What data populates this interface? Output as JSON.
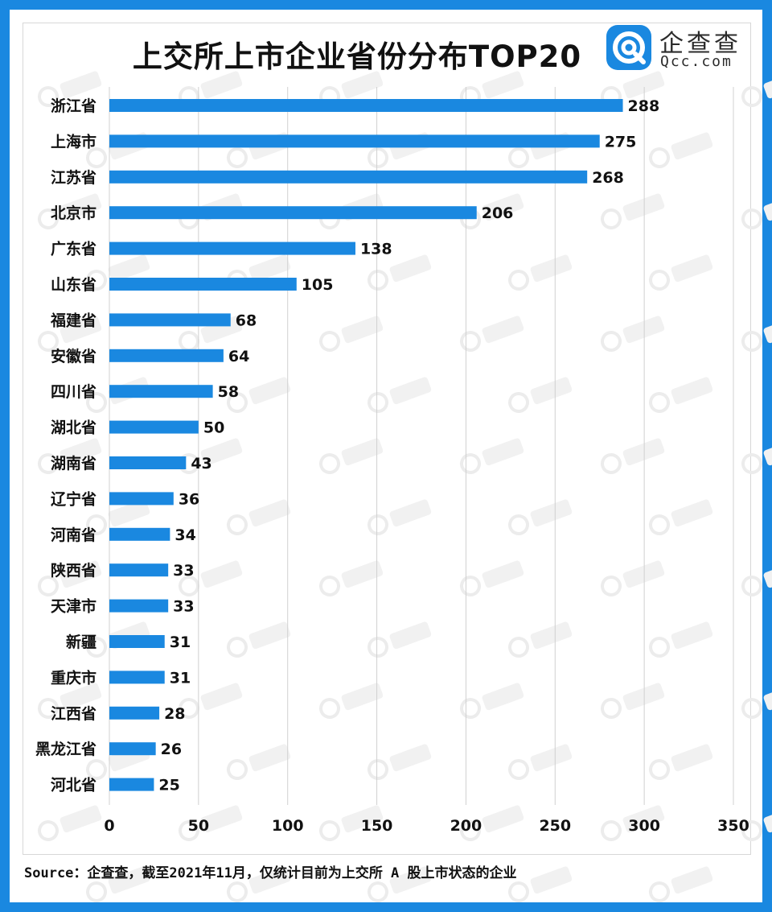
{
  "title": "上交所上市企业省份分布TOP20",
  "logo": {
    "cn": "企查查",
    "en": "Qcc.com"
  },
  "source": "Source：企查查，截至2021年11月，仅统计目前为上交所 A 股上市状态的企业",
  "colors": {
    "border": "#1a88e0",
    "bar": "#1a88e0",
    "grid": "#d0d0d0",
    "text": "#111111"
  },
  "chart_data": {
    "type": "bar",
    "orientation": "horizontal",
    "categories": [
      "浙江省",
      "上海市",
      "江苏省",
      "北京市",
      "广东省",
      "山东省",
      "福建省",
      "安徽省",
      "四川省",
      "湖北省",
      "湖南省",
      "辽宁省",
      "河南省",
      "陕西省",
      "天津市",
      "新疆",
      "重庆市",
      "江西省",
      "黑龙江省",
      "河北省"
    ],
    "values": [
      288,
      275,
      268,
      206,
      138,
      105,
      68,
      64,
      58,
      50,
      43,
      36,
      34,
      33,
      33,
      31,
      31,
      28,
      26,
      25
    ],
    "xlim": [
      0,
      350
    ],
    "xticks": [
      0,
      50,
      100,
      150,
      200,
      250,
      300,
      350
    ],
    "grid": true,
    "data_labels": true
  }
}
